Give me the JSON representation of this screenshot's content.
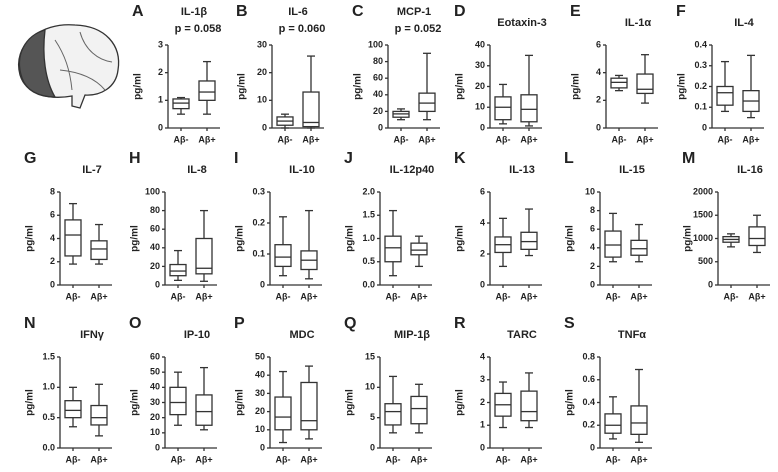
{
  "chart_data": [
    {
      "type": "box",
      "panel": "A",
      "title": "IL-1β",
      "annotation": "p = 0.058",
      "ylabel": "pg/ml",
      "categories": [
        "Aβ-",
        "Aβ+"
      ],
      "ylim": [
        0,
        3
      ],
      "yticks": [
        0,
        1,
        2,
        3
      ],
      "stats": [
        {
          "min": 0.5,
          "q1": 0.7,
          "median": 0.9,
          "q3": 1.05,
          "max": 1.1
        },
        {
          "min": 0.5,
          "q1": 1.0,
          "median": 1.3,
          "q3": 1.7,
          "max": 2.4
        }
      ]
    },
    {
      "type": "box",
      "panel": "B",
      "title": "IL-6",
      "annotation": "p = 0.060",
      "ylabel": "pg/ml",
      "categories": [
        "Aβ-",
        "Aβ+"
      ],
      "ylim": [
        0,
        30
      ],
      "yticks": [
        0,
        10,
        20,
        30
      ],
      "stats": [
        {
          "min": 0,
          "q1": 1,
          "median": 2.5,
          "q3": 4,
          "max": 5
        },
        {
          "min": 0,
          "q1": 0.5,
          "median": 2,
          "q3": 13,
          "max": 26
        }
      ]
    },
    {
      "type": "box",
      "panel": "C",
      "title": "MCP-1",
      "annotation": "p = 0.052",
      "ylabel": "pg/ml",
      "categories": [
        "Aβ-",
        "Aβ+"
      ],
      "ylim": [
        0,
        100
      ],
      "yticks": [
        0,
        20,
        40,
        60,
        80,
        100
      ],
      "stats": [
        {
          "min": 10,
          "q1": 13,
          "median": 17,
          "q3": 20,
          "max": 23
        },
        {
          "min": 10,
          "q1": 20,
          "median": 30,
          "q3": 42,
          "max": 90
        }
      ]
    },
    {
      "type": "box",
      "panel": "D",
      "title": "Eotaxin-3",
      "ylabel": "pg/ml",
      "categories": [
        "Aβ-",
        "Aβ+"
      ],
      "ylim": [
        0,
        40
      ],
      "yticks": [
        0,
        10,
        20,
        30,
        40
      ],
      "stats": [
        {
          "min": 2,
          "q1": 4,
          "median": 10,
          "q3": 15,
          "max": 21
        },
        {
          "min": 1,
          "q1": 3,
          "median": 9,
          "q3": 16,
          "max": 35
        }
      ]
    },
    {
      "type": "box",
      "panel": "E",
      "title": "IL-1α",
      "ylabel": "pg/ml",
      "categories": [
        "Aβ-",
        "Aβ+"
      ],
      "ylim": [
        0,
        6
      ],
      "yticks": [
        0,
        2,
        4,
        6
      ],
      "stats": [
        {
          "min": 2.7,
          "q1": 2.9,
          "median": 3.3,
          "q3": 3.6,
          "max": 3.8
        },
        {
          "min": 1.8,
          "q1": 2.5,
          "median": 2.8,
          "q3": 3.9,
          "max": 5.3
        }
      ]
    },
    {
      "type": "box",
      "panel": "F",
      "title": "IL-4",
      "ylabel": "pg/ml",
      "categories": [
        "Aβ-",
        "Aβ+"
      ],
      "ylim": [
        0,
        0.4
      ],
      "yticks": [
        0,
        0.1,
        0.2,
        0.3,
        0.4
      ],
      "stats": [
        {
          "min": 0.08,
          "q1": 0.11,
          "median": 0.17,
          "q3": 0.2,
          "max": 0.32
        },
        {
          "min": 0.05,
          "q1": 0.08,
          "median": 0.13,
          "q3": 0.18,
          "max": 0.35
        }
      ]
    },
    {
      "type": "box",
      "panel": "G",
      "title": "IL-7",
      "ylabel": "pg/ml",
      "categories": [
        "Aβ-",
        "Aβ+"
      ],
      "ylim": [
        0,
        8
      ],
      "yticks": [
        0,
        2,
        4,
        6,
        8
      ],
      "stats": [
        {
          "min": 1.8,
          "q1": 2.5,
          "median": 4.3,
          "q3": 5.6,
          "max": 7
        },
        {
          "min": 1.8,
          "q1": 2.2,
          "median": 3.1,
          "q3": 3.8,
          "max": 5.2
        }
      ]
    },
    {
      "type": "box",
      "panel": "H",
      "title": "IL-8",
      "ylabel": "pg/ml",
      "categories": [
        "Aβ-",
        "Aβ+"
      ],
      "ylim": [
        0,
        100
      ],
      "yticks": [
        0,
        20,
        40,
        60,
        80,
        100
      ],
      "stats": [
        {
          "min": 5,
          "q1": 10,
          "median": 15,
          "q3": 22,
          "max": 37
        },
        {
          "min": 4,
          "q1": 12,
          "median": 18,
          "q3": 50,
          "max": 80
        }
      ]
    },
    {
      "type": "box",
      "panel": "I",
      "title": "IL-10",
      "ylabel": "pg/ml",
      "categories": [
        "Aβ-",
        "Aβ+"
      ],
      "ylim": [
        0,
        0.3
      ],
      "yticks": [
        0,
        0.1,
        0.2,
        0.3
      ],
      "stats": [
        {
          "min": 0.03,
          "q1": 0.06,
          "median": 0.09,
          "q3": 0.13,
          "max": 0.22
        },
        {
          "min": 0.02,
          "q1": 0.05,
          "median": 0.08,
          "q3": 0.11,
          "max": 0.24
        }
      ]
    },
    {
      "type": "box",
      "panel": "J",
      "title": "IL-12p40",
      "ylabel": "pg/ml",
      "categories": [
        "Aβ-",
        "Aβ+"
      ],
      "ylim": [
        0,
        2
      ],
      "yticks": [
        {
          "value": 0,
          "label": "0.0"
        },
        0.5,
        {
          "value": 1,
          "label": "1.0"
        },
        1.5,
        {
          "value": 2,
          "label": "2.0"
        }
      ],
      "stats": [
        {
          "min": 0.2,
          "q1": 0.5,
          "median": 0.8,
          "q3": 1.05,
          "max": 1.6
        },
        {
          "min": 0.4,
          "q1": 0.65,
          "median": 0.75,
          "q3": 0.9,
          "max": 1.05
        }
      ]
    },
    {
      "type": "box",
      "panel": "K",
      "title": "IL-13",
      "ylabel": "pg/ml",
      "categories": [
        "Aβ-",
        "Aβ+"
      ],
      "ylim": [
        0,
        6
      ],
      "yticks": [
        0,
        2,
        4,
        6
      ],
      "stats": [
        {
          "min": 1.2,
          "q1": 2.1,
          "median": 2.6,
          "q3": 3.1,
          "max": 4.3
        },
        {
          "min": 1.9,
          "q1": 2.3,
          "median": 2.8,
          "q3": 3.4,
          "max": 4.9
        }
      ]
    },
    {
      "type": "box",
      "panel": "L",
      "title": "IL-15",
      "ylabel": "pg/ml",
      "categories": [
        "Aβ-",
        "Aβ+"
      ],
      "ylim": [
        0,
        10
      ],
      "yticks": [
        0,
        2,
        4,
        6,
        8,
        10
      ],
      "stats": [
        {
          "min": 2.5,
          "q1": 3,
          "median": 4.3,
          "q3": 5.8,
          "max": 7.7
        },
        {
          "min": 2.5,
          "q1": 3.2,
          "median": 3.9,
          "q3": 4.8,
          "max": 6.5
        }
      ]
    },
    {
      "type": "box",
      "panel": "M",
      "title": "IL-16",
      "ylabel": "pg/ml",
      "categories": [
        "Aβ-",
        "Aβ+"
      ],
      "ylim": [
        0,
        2000
      ],
      "yticks": [
        0,
        500,
        1000,
        1500,
        2000
      ],
      "stats": [
        {
          "min": 820,
          "q1": 920,
          "median": 980,
          "q3": 1040,
          "max": 1100
        },
        {
          "min": 700,
          "q1": 850,
          "median": 1000,
          "q3": 1250,
          "max": 1500
        }
      ]
    },
    {
      "type": "box",
      "panel": "N",
      "title": "IFNγ",
      "ylabel": "pg/ml",
      "categories": [
        "Aβ-",
        "Aβ+"
      ],
      "ylim": [
        0,
        1.5
      ],
      "yticks": [
        {
          "value": 0,
          "label": "0.0"
        },
        0.5,
        {
          "value": 1,
          "label": "1.0"
        },
        1.5
      ],
      "stats": [
        {
          "min": 0.35,
          "q1": 0.5,
          "median": 0.62,
          "q3": 0.78,
          "max": 1.0
        },
        {
          "min": 0.2,
          "q1": 0.38,
          "median": 0.5,
          "q3": 0.7,
          "max": 1.05
        }
      ]
    },
    {
      "type": "box",
      "panel": "O",
      "title": "IP-10",
      "ylabel": "pg/ml",
      "categories": [
        "Aβ-",
        "Aβ+"
      ],
      "ylim": [
        0,
        60
      ],
      "yticks": [
        0,
        10,
        20,
        30,
        40,
        50,
        60
      ],
      "stats": [
        {
          "min": 15,
          "q1": 22,
          "median": 30,
          "q3": 40,
          "max": 50
        },
        {
          "min": 12,
          "q1": 15,
          "median": 24,
          "q3": 35,
          "max": 53
        }
      ]
    },
    {
      "type": "box",
      "panel": "P",
      "title": "MDC",
      "ylabel": "pg/ml",
      "categories": [
        "Aβ-",
        "Aβ+"
      ],
      "ylim": [
        0,
        50
      ],
      "yticks": [
        0,
        10,
        20,
        30,
        40,
        50
      ],
      "stats": [
        {
          "min": 3,
          "q1": 10,
          "median": 17,
          "q3": 28,
          "max": 42
        },
        {
          "min": 5,
          "q1": 10,
          "median": 15,
          "q3": 36,
          "max": 45
        }
      ]
    },
    {
      "type": "box",
      "panel": "Q",
      "title": "MIP-1β",
      "ylabel": "pg/ml",
      "categories": [
        "Aβ-",
        "Aβ+"
      ],
      "ylim": [
        0,
        15
      ],
      "yticks": [
        0,
        5,
        10,
        15
      ],
      "stats": [
        {
          "min": 2.5,
          "q1": 3.8,
          "median": 6,
          "q3": 7.3,
          "max": 11.8
        },
        {
          "min": 2.5,
          "q1": 4,
          "median": 6.5,
          "q3": 8.5,
          "max": 10.5
        }
      ]
    },
    {
      "type": "box",
      "panel": "R",
      "title": "TARC",
      "ylabel": "pg/ml",
      "categories": [
        "Aβ-",
        "Aβ+"
      ],
      "ylim": [
        0,
        4
      ],
      "yticks": [
        0,
        1,
        2,
        3,
        4
      ],
      "stats": [
        {
          "min": 0.9,
          "q1": 1.4,
          "median": 1.9,
          "q3": 2.4,
          "max": 2.9
        },
        {
          "min": 0.9,
          "q1": 1.2,
          "median": 1.6,
          "q3": 2.5,
          "max": 3.3
        }
      ]
    },
    {
      "type": "box",
      "panel": "S",
      "title": "TNFα",
      "ylabel": "pg/ml",
      "categories": [
        "Aβ-",
        "Aβ+"
      ],
      "ylim": [
        0,
        0.8
      ],
      "yticks": [
        0,
        0.2,
        0.4,
        0.6,
        0.8
      ],
      "stats": [
        {
          "min": 0.08,
          "q1": 0.13,
          "median": 0.2,
          "q3": 0.3,
          "max": 0.45
        },
        {
          "min": 0.05,
          "q1": 0.12,
          "median": 0.22,
          "q3": 0.37,
          "max": 0.69
        }
      ]
    }
  ]
}
